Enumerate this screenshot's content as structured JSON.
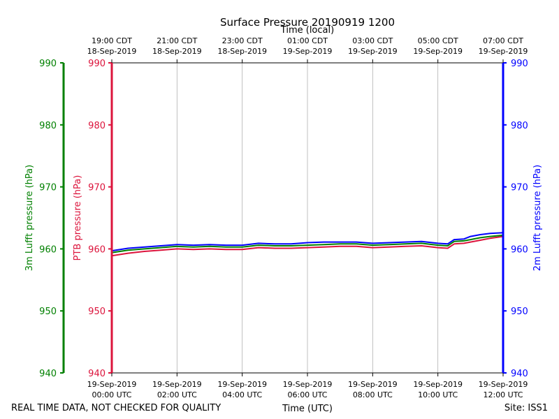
{
  "chart_data": {
    "type": "line",
    "title": "Surface Pressure 20190919 1200",
    "xlabel_top": "Time (local)",
    "xlabel_bottom": "Time (UTC)",
    "xlim": [
      0,
      12
    ],
    "x_bottom_ticks": [
      {
        "x": 0,
        "line1": "19-Sep-2019",
        "line2": "00:00 UTC"
      },
      {
        "x": 2,
        "line1": "19-Sep-2019",
        "line2": "02:00 UTC"
      },
      {
        "x": 4,
        "line1": "19-Sep-2019",
        "line2": "04:00 UTC"
      },
      {
        "x": 6,
        "line1": "19-Sep-2019",
        "line2": "06:00 UTC"
      },
      {
        "x": 8,
        "line1": "19-Sep-2019",
        "line2": "08:00 UTC"
      },
      {
        "x": 10,
        "line1": "19-Sep-2019",
        "line2": "10:00 UTC"
      },
      {
        "x": 12,
        "line1": "19-Sep-2019",
        "line2": "12:00 UTC"
      }
    ],
    "x_top_ticks": [
      {
        "x": 0,
        "line1": "19:00 CDT",
        "line2": "18-Sep-2019"
      },
      {
        "x": 2,
        "line1": "21:00 CDT",
        "line2": "18-Sep-2019"
      },
      {
        "x": 4,
        "line1": "23:00 CDT",
        "line2": "18-Sep-2019"
      },
      {
        "x": 6,
        "line1": "01:00 CDT",
        "line2": "19-Sep-2019"
      },
      {
        "x": 8,
        "line1": "03:00 CDT",
        "line2": "19-Sep-2019"
      },
      {
        "x": 10,
        "line1": "05:00 CDT",
        "line2": "19-Sep-2019"
      },
      {
        "x": 12,
        "line1": "07:00 CDT",
        "line2": "19-Sep-2019"
      }
    ],
    "ylim": [
      940,
      990
    ],
    "yticks": [
      940,
      950,
      960,
      970,
      980,
      990
    ],
    "y_axes": [
      {
        "label": "3m Lufft pressure (hPa)",
        "color": "#008000"
      },
      {
        "label": "PTB pressure (hPa)",
        "color": "#dc143c"
      },
      {
        "label": "2m Lufft pressure (hPa)",
        "color": "#0000ff"
      }
    ],
    "grid_x": true,
    "grid_y": false,
    "series": [
      {
        "color": "#dc143c",
        "x": [
          0,
          0.5,
          1,
          1.5,
          2,
          2.5,
          3,
          3.5,
          4,
          4.5,
          5,
          5.5,
          6,
          6.5,
          7,
          7.5,
          8,
          8.5,
          9,
          9.5,
          10,
          10.3,
          10.5,
          10.8,
          11,
          11.3,
          11.6,
          12
        ],
        "values": [
          958.9,
          959.3,
          959.6,
          959.8,
          960.0,
          959.9,
          960.0,
          959.9,
          959.9,
          960.2,
          960.1,
          960.1,
          960.2,
          960.3,
          960.4,
          960.4,
          960.2,
          960.3,
          960.4,
          960.5,
          960.2,
          960.1,
          960.8,
          960.9,
          961.1,
          961.4,
          961.7,
          962.0
        ]
      },
      {
        "color": "#008000",
        "x": [
          0,
          0.5,
          1,
          1.5,
          2,
          2.5,
          3,
          3.5,
          4,
          4.5,
          5,
          5.5,
          6,
          6.5,
          7,
          7.5,
          8,
          8.5,
          9,
          9.5,
          10,
          10.3,
          10.5,
          10.8,
          11,
          11.3,
          11.6,
          12
        ],
        "values": [
          959.4,
          959.8,
          960.0,
          960.2,
          960.4,
          960.3,
          960.4,
          960.3,
          960.3,
          960.6,
          960.5,
          960.5,
          960.6,
          960.7,
          960.8,
          960.8,
          960.6,
          960.7,
          960.8,
          960.9,
          960.6,
          960.5,
          961.2,
          961.3,
          961.5,
          961.8,
          962.0,
          962.2
        ]
      },
      {
        "color": "#0000ff",
        "x": [
          0,
          0.5,
          1,
          1.5,
          2,
          2.5,
          3,
          3.5,
          4,
          4.5,
          5,
          5.5,
          6,
          6.5,
          7,
          7.5,
          8,
          8.5,
          9,
          9.5,
          10,
          10.3,
          10.5,
          10.8,
          11,
          11.3,
          11.6,
          12
        ],
        "values": [
          959.7,
          960.1,
          960.3,
          960.5,
          960.7,
          960.6,
          960.7,
          960.6,
          960.6,
          960.9,
          960.8,
          960.8,
          961.0,
          961.1,
          961.1,
          961.1,
          960.9,
          961.0,
          961.1,
          961.2,
          960.9,
          960.8,
          961.5,
          961.6,
          962.0,
          962.3,
          962.5,
          962.6
        ]
      }
    ]
  },
  "footer": {
    "left_note": "REAL TIME DATA, NOT CHECKED FOR QUALITY",
    "site": "Site: ISS1"
  }
}
